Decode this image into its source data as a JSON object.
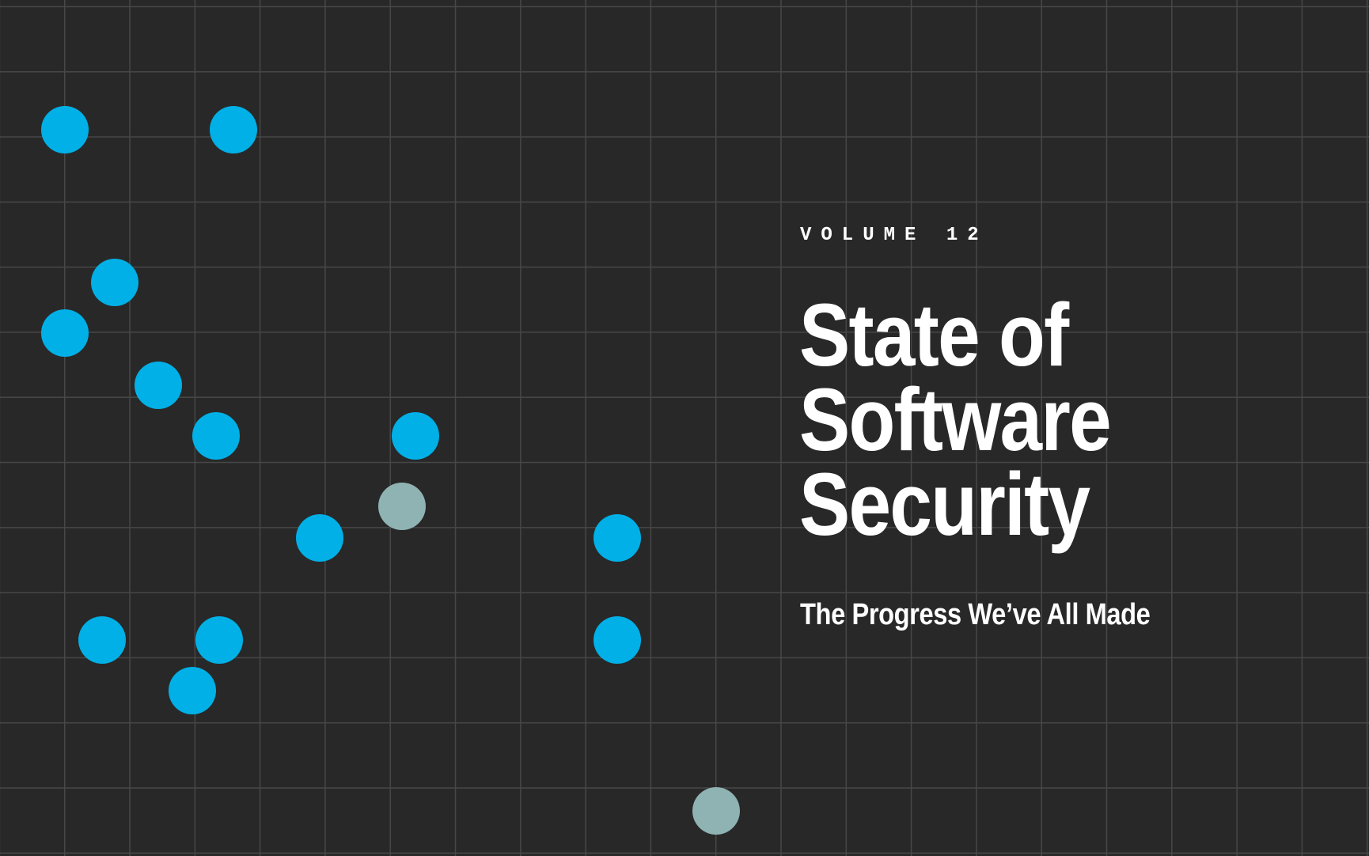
{
  "cover": {
    "volume_label": "VOLUME 12",
    "title_lines": [
      "State of",
      "Software",
      "Security"
    ],
    "subtitle": "The Progress We’ve All Made"
  },
  "colors": {
    "background": "#282828",
    "grid": "#474747",
    "accent_blue": "#00b0e6",
    "muted_gray": "#8fb3b3"
  },
  "dots": [
    {
      "color": "blue"
    },
    {
      "color": "blue"
    },
    {
      "color": "blue"
    },
    {
      "color": "blue"
    },
    {
      "color": "blue"
    },
    {
      "color": "blue"
    },
    {
      "color": "blue"
    },
    {
      "color": "gray"
    },
    {
      "color": "blue"
    },
    {
      "color": "blue"
    },
    {
      "color": "blue"
    },
    {
      "color": "blue"
    },
    {
      "color": "blue"
    },
    {
      "color": "blue"
    },
    {
      "color": "gray"
    }
  ]
}
